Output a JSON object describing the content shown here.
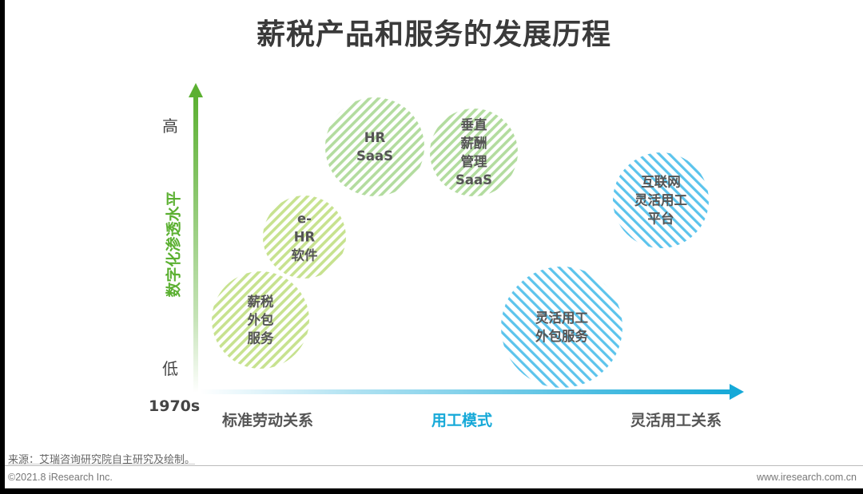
{
  "title": "薪税产品和服务的发展历程",
  "y_axis": {
    "title": "数字化渗透水平",
    "high": "高",
    "low": "低",
    "origin": "1970s",
    "color": "#5bb031"
  },
  "x_axis": {
    "left": "标准劳动关系",
    "middle": "用工模式",
    "right": "灵活用工关系",
    "color": "#16a9d8"
  },
  "bubbles": [
    {
      "lines": [
        "薪税",
        "外包",
        "服务"
      ],
      "theme": "yellow-green"
    },
    {
      "lines": [
        "e-",
        "HR",
        "软件"
      ],
      "theme": "yellow-green"
    },
    {
      "lines": [
        "HR",
        "SaaS"
      ],
      "theme": "green"
    },
    {
      "lines": [
        "垂直",
        "薪酬",
        "管理",
        "SaaS"
      ],
      "theme": "green"
    },
    {
      "lines": [
        "互联网",
        "灵活用工",
        "平台"
      ],
      "theme": "blue"
    },
    {
      "lines": [
        "灵活用工",
        "外包服务"
      ],
      "theme": "blue"
    }
  ],
  "colors": {
    "yellow-green": "#b5d873",
    "green": "#9ccf84",
    "blue": "#36b7e6"
  },
  "footer": {
    "source": "来源：艾瑞咨询研究院自主研究及绘制。",
    "copyright": "©2021.8 iResearch Inc.",
    "website": "www.iresearch.com.cn"
  }
}
